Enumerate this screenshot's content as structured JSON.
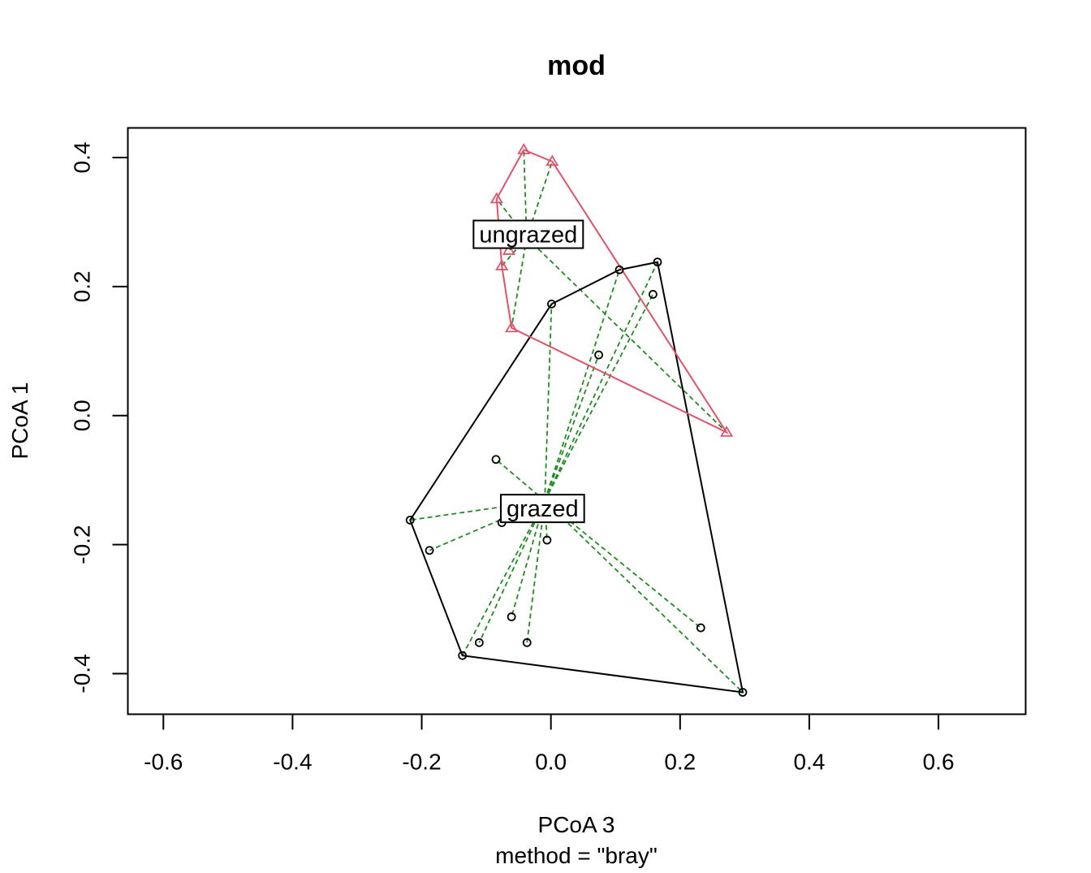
{
  "chart_data": {
    "type": "scatter",
    "title": "mod",
    "xlabel": "PCoA 3",
    "subtitle": "method = \"bray\"",
    "ylabel": "PCoA 1",
    "xlim": [
      -0.655,
      0.735
    ],
    "ylim": [
      -0.463,
      0.446
    ],
    "x_ticks": [
      -0.6,
      -0.4,
      -0.2,
      0.0,
      0.2,
      0.4,
      0.6
    ],
    "x_tick_labels": [
      "-0.6",
      "-0.4",
      "-0.2",
      "0.0",
      "0.2",
      "0.4",
      "0.6"
    ],
    "y_ticks": [
      -0.4,
      -0.2,
      0.0,
      0.2,
      0.4
    ],
    "y_tick_labels": [
      "-0.4",
      "-0.2",
      "0.0",
      "0.2",
      "0.4"
    ],
    "spider_color": "#228B22",
    "groups": [
      {
        "name": "grazed",
        "color": "#000000",
        "marker": "circle",
        "centroid": {
          "x": -0.0095,
          "y": -0.132
        },
        "label": "grazed",
        "label_position": {
          "x": -0.013,
          "y": -0.144
        },
        "points": [
          {
            "x": 0.001,
            "y": 0.173
          },
          {
            "x": 0.106,
            "y": 0.226
          },
          {
            "x": 0.165,
            "y": 0.238
          },
          {
            "x": 0.158,
            "y": 0.188
          },
          {
            "x": 0.074,
            "y": 0.094
          },
          {
            "x": -0.085,
            "y": -0.068
          },
          {
            "x": -0.218,
            "y": -0.162
          },
          {
            "x": -0.076,
            "y": -0.166
          },
          {
            "x": -0.188,
            "y": -0.209
          },
          {
            "x": -0.006,
            "y": -0.193
          },
          {
            "x": -0.061,
            "y": -0.312
          },
          {
            "x": -0.111,
            "y": -0.352
          },
          {
            "x": -0.037,
            "y": -0.352
          },
          {
            "x": -0.137,
            "y": -0.372
          },
          {
            "x": 0.232,
            "y": -0.329
          },
          {
            "x": 0.297,
            "y": -0.429
          }
        ],
        "hull": [
          {
            "x": 0.001,
            "y": 0.173
          },
          {
            "x": 0.106,
            "y": 0.226
          },
          {
            "x": 0.165,
            "y": 0.238
          },
          {
            "x": 0.297,
            "y": -0.429
          },
          {
            "x": -0.137,
            "y": -0.372
          },
          {
            "x": -0.218,
            "y": -0.162
          }
        ]
      },
      {
        "name": "ungrazed",
        "color": "#DF536B",
        "marker": "triangle",
        "centroid": {
          "x": -0.0375,
          "y": 0.276
        },
        "label": "ungrazed",
        "label_position": {
          "x": -0.035,
          "y": 0.281
        },
        "points": [
          {
            "x": -0.042,
            "y": 0.412
          },
          {
            "x": 0.002,
            "y": 0.394
          },
          {
            "x": -0.084,
            "y": 0.336
          },
          {
            "x": -0.065,
            "y": 0.256
          },
          {
            "x": -0.076,
            "y": 0.232
          },
          {
            "x": -0.061,
            "y": 0.136
          },
          {
            "x": 0.272,
            "y": -0.026
          }
        ],
        "hull": [
          {
            "x": -0.042,
            "y": 0.412
          },
          {
            "x": 0.002,
            "y": 0.394
          },
          {
            "x": 0.272,
            "y": -0.026
          },
          {
            "x": -0.061,
            "y": 0.136
          },
          {
            "x": -0.076,
            "y": 0.232
          },
          {
            "x": -0.084,
            "y": 0.336
          }
        ]
      }
    ]
  }
}
